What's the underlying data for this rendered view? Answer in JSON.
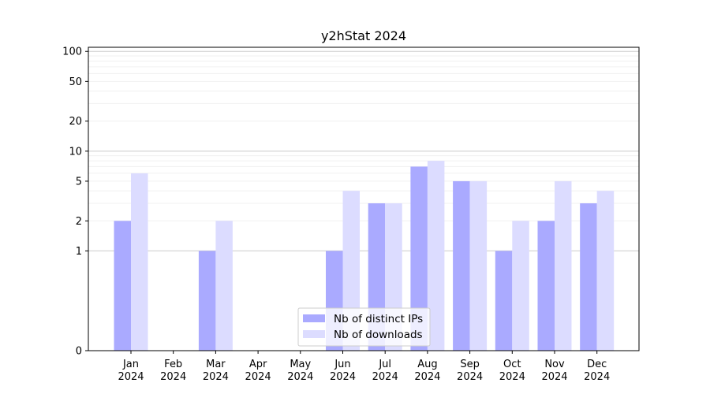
{
  "chart_data": {
    "type": "bar",
    "title": "y2hStat 2024",
    "xlabel": "",
    "ylabel": "",
    "categories": [
      "Jan\n2024",
      "Feb\n2024",
      "Mar\n2024",
      "Apr\n2024",
      "May\n2024",
      "Jun\n2024",
      "Jul\n2024",
      "Aug\n2024",
      "Sep\n2024",
      "Oct\n2024",
      "Nov\n2024",
      "Dec\n2024"
    ],
    "series": [
      {
        "name": "Nb of distinct IPs",
        "values": [
          2,
          0,
          1,
          0,
          0,
          1,
          3,
          7,
          5,
          1,
          2,
          3
        ],
        "color": "#aaaaff"
      },
      {
        "name": "Nb of downloads",
        "values": [
          6,
          0,
          2,
          0,
          0,
          4,
          3,
          8,
          5,
          2,
          5,
          4
        ],
        "color": "#dcdcff"
      }
    ],
    "yscale": "symlog",
    "ylim": [
      0,
      110
    ],
    "yticks": [
      0,
      1,
      2,
      5,
      10,
      20,
      50,
      100
    ],
    "ytick_labels": [
      "0",
      "1",
      "2",
      "5",
      "10",
      "20",
      "50",
      "100"
    ],
    "grid": true,
    "legend": "lower-center"
  }
}
